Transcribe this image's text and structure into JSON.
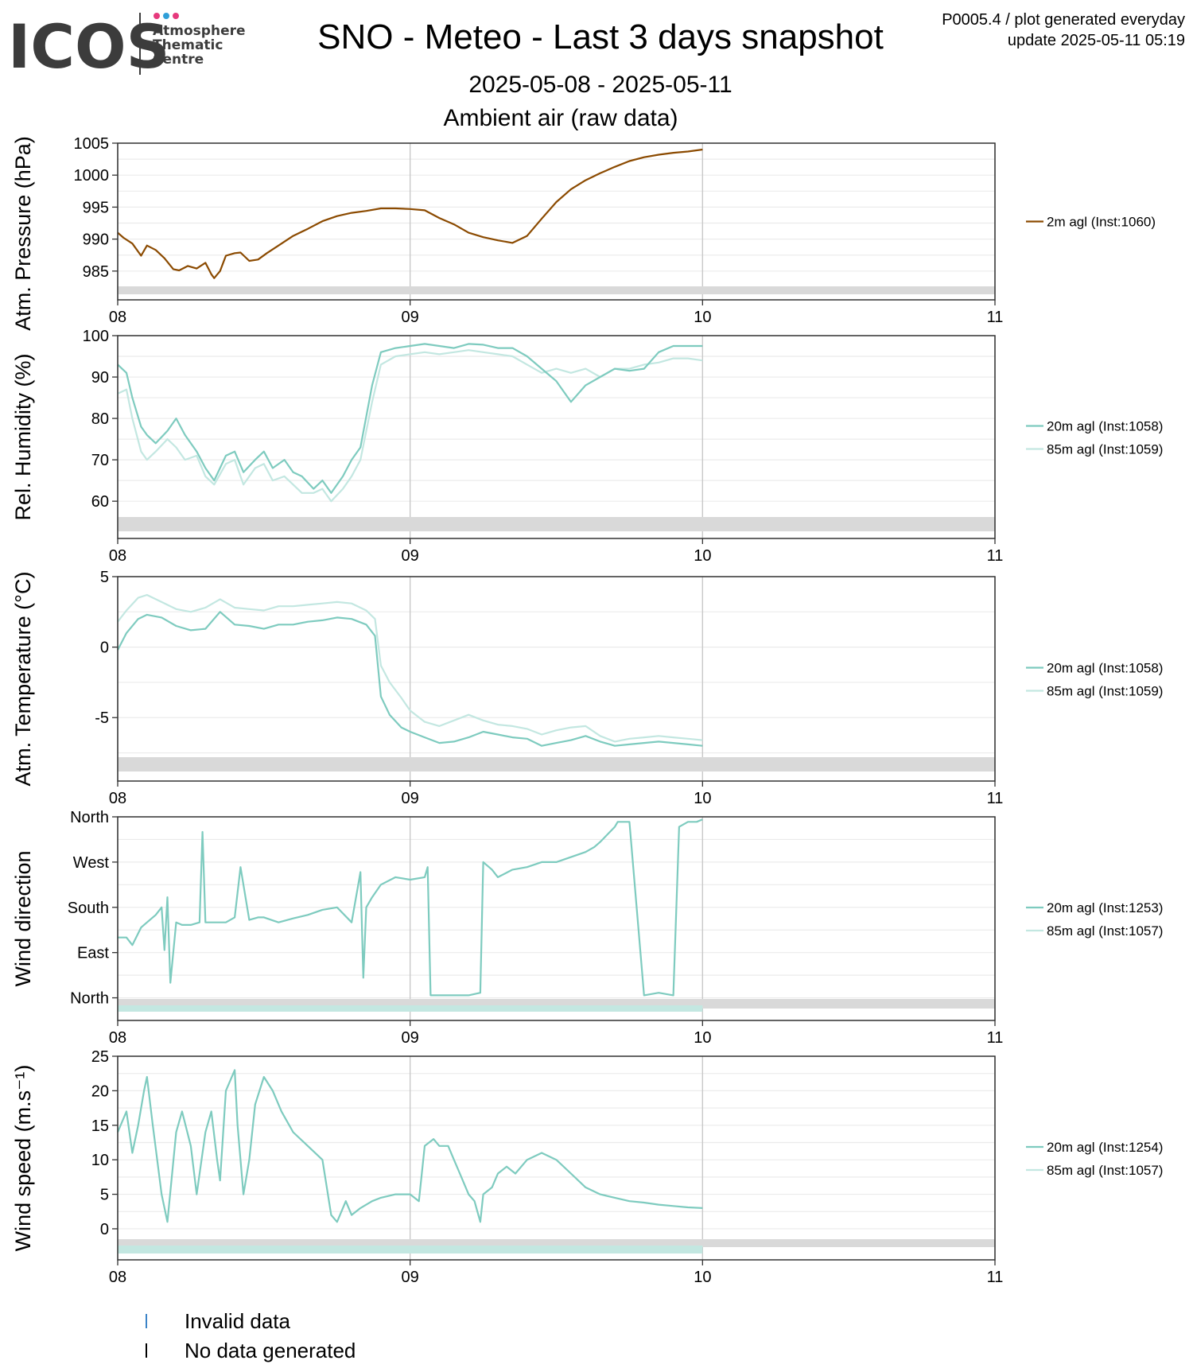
{
  "header": {
    "logo_text": "ICOS",
    "logo_sub": [
      "Atmosphere",
      "Thematic",
      "Centre"
    ],
    "title": "SNO - Meteo - Last 3 days snapshot",
    "date_range": "2025-05-08 - 2025-05-11",
    "panel_title": "Ambient air (raw data)",
    "meta_line1": "P0005.4 / plot generated everyday",
    "meta_line2": "update  2025-05-11 05:19"
  },
  "colors": {
    "logo_dots": [
      "#e6397c",
      "#2f9fd8",
      "#e6397c"
    ],
    "pressure": "#8b4a00",
    "series_20m": "#7ecbbf",
    "series_85m": "#c3e7e1",
    "no_data": "#d9d9d9",
    "invalid": "#3b83c7",
    "grid": "#ebebeb",
    "vline": "#c8c8c8"
  },
  "chart_data": [
    {
      "type": "line",
      "id": "pressure",
      "ylabel": "Atm. Pressure (hPa)",
      "x_ticks": [
        "08",
        "09",
        "10",
        "11"
      ],
      "y_ticks": [
        985,
        990,
        995,
        1000,
        1005
      ],
      "ylim": [
        980.5,
        1005
      ],
      "series": [
        {
          "name": "2m agl (Inst:1060)",
          "color_key": "pressure",
          "x": [
            0,
            0.02,
            0.05,
            0.08,
            0.1,
            0.13,
            0.16,
            0.19,
            0.21,
            0.24,
            0.27,
            0.3,
            0.32,
            0.33,
            0.35,
            0.37,
            0.4,
            0.42,
            0.45,
            0.48,
            0.51,
            0.55,
            0.6,
            0.65,
            0.7,
            0.75,
            0.8,
            0.85,
            0.9,
            0.95,
            1.0,
            1.05,
            1.1,
            1.15,
            1.2,
            1.25,
            1.3,
            1.35,
            1.4,
            1.45,
            1.5,
            1.55,
            1.6,
            1.65,
            1.7,
            1.75,
            1.8,
            1.85,
            1.9,
            1.95,
            2.0
          ],
          "y": [
            991,
            990.2,
            989.3,
            987.4,
            989,
            988.3,
            987,
            985.3,
            985.1,
            985.8,
            985.4,
            986.3,
            984.5,
            983.9,
            985,
            987.4,
            987.8,
            987.9,
            986.6,
            986.8,
            987.8,
            989,
            990.5,
            991.6,
            992.8,
            993.6,
            994.1,
            994.4,
            994.8,
            994.8,
            994.7,
            994.5,
            993.3,
            992.3,
            991,
            990.3,
            989.8,
            989.4,
            990.5,
            993.2,
            995.8,
            997.8,
            999.2,
            1000.3,
            1001.3,
            1002.2,
            1002.8,
            1003.2,
            1003.5,
            1003.7,
            1004
          ]
        }
      ]
    },
    {
      "type": "line",
      "id": "humidity",
      "ylabel": "Rel. Humidity (%)",
      "x_ticks": [
        "08",
        "09",
        "10",
        "11"
      ],
      "y_ticks": [
        60,
        70,
        80,
        90,
        100
      ],
      "ylim": [
        51,
        100
      ],
      "series": [
        {
          "name": "20m agl (Inst:1058)",
          "color_key": "series_20m",
          "x": [
            0,
            0.03,
            0.05,
            0.08,
            0.1,
            0.13,
            0.17,
            0.2,
            0.23,
            0.27,
            0.3,
            0.33,
            0.37,
            0.4,
            0.43,
            0.47,
            0.5,
            0.53,
            0.57,
            0.6,
            0.63,
            0.67,
            0.7,
            0.73,
            0.77,
            0.8,
            0.83,
            0.87,
            0.9,
            0.95,
            1.0,
            1.05,
            1.1,
            1.15,
            1.2,
            1.25,
            1.3,
            1.35,
            1.4,
            1.45,
            1.5,
            1.55,
            1.6,
            1.65,
            1.7,
            1.75,
            1.8,
            1.85,
            1.9,
            1.95,
            2.0
          ],
          "y": [
            93,
            91,
            85,
            78,
            76,
            74,
            77,
            80,
            76,
            72,
            68,
            65,
            71,
            72,
            67,
            70,
            72,
            68,
            70,
            67,
            66,
            63,
            65,
            62,
            66,
            70,
            73,
            88,
            96,
            97,
            97.5,
            98,
            97.5,
            97,
            98,
            97.8,
            97,
            97,
            95,
            92,
            89,
            84,
            88,
            90,
            92,
            91.5,
            92,
            96,
            97.5,
            97.5,
            97.5
          ]
        },
        {
          "name": "85m agl (Inst:1059)",
          "color_key": "series_85m",
          "x": [
            0,
            0.03,
            0.05,
            0.08,
            0.1,
            0.13,
            0.17,
            0.2,
            0.23,
            0.27,
            0.3,
            0.33,
            0.37,
            0.4,
            0.43,
            0.47,
            0.5,
            0.53,
            0.57,
            0.6,
            0.63,
            0.67,
            0.7,
            0.73,
            0.77,
            0.8,
            0.83,
            0.87,
            0.9,
            0.95,
            1.0,
            1.05,
            1.1,
            1.15,
            1.2,
            1.25,
            1.3,
            1.35,
            1.4,
            1.45,
            1.5,
            1.55,
            1.6,
            1.65,
            1.7,
            1.75,
            1.8,
            1.85,
            1.9,
            1.95,
            2.0
          ],
          "y": [
            86,
            87,
            80,
            72,
            70,
            72,
            75,
            73,
            70,
            71,
            66,
            64,
            69,
            70,
            64,
            68,
            69,
            65,
            66,
            64,
            62,
            62,
            63,
            60,
            63,
            66,
            70,
            84,
            93,
            95,
            95.5,
            96,
            95.5,
            96,
            96.5,
            96,
            95.5,
            95,
            93,
            91,
            92,
            91,
            92,
            90,
            92,
            92,
            93,
            93.5,
            94.5,
            94.5,
            94
          ]
        }
      ]
    },
    {
      "type": "line",
      "id": "temperature",
      "ylabel": "Atm. Temperature (°C)",
      "x_ticks": [
        "08",
        "09",
        "10",
        "11"
      ],
      "y_ticks": [
        -5,
        0,
        5
      ],
      "ylim": [
        -9.5,
        5
      ],
      "series": [
        {
          "name": "20m agl (Inst:1058)",
          "color_key": "series_20m",
          "x": [
            0,
            0.03,
            0.07,
            0.1,
            0.15,
            0.2,
            0.25,
            0.3,
            0.35,
            0.4,
            0.45,
            0.5,
            0.55,
            0.6,
            0.65,
            0.7,
            0.75,
            0.8,
            0.85,
            0.88,
            0.9,
            0.93,
            0.97,
            1.0,
            1.05,
            1.1,
            1.15,
            1.2,
            1.25,
            1.3,
            1.35,
            1.4,
            1.45,
            1.5,
            1.55,
            1.6,
            1.65,
            1.7,
            1.75,
            1.8,
            1.85,
            1.9,
            1.95,
            2.0
          ],
          "y": [
            -0.2,
            1,
            2,
            2.3,
            2.1,
            1.5,
            1.2,
            1.3,
            2.5,
            1.6,
            1.5,
            1.3,
            1.6,
            1.6,
            1.8,
            1.9,
            2.1,
            2,
            1.6,
            0.8,
            -3.5,
            -4.8,
            -5.7,
            -6,
            -6.4,
            -6.8,
            -6.7,
            -6.4,
            -6,
            -6.2,
            -6.4,
            -6.5,
            -7,
            -6.8,
            -6.6,
            -6.3,
            -6.7,
            -7,
            -6.9,
            -6.8,
            -6.7,
            -6.8,
            -6.9,
            -7
          ]
        },
        {
          "name": "85m agl (Inst:1059)",
          "color_key": "series_85m",
          "x": [
            0,
            0.03,
            0.07,
            0.1,
            0.15,
            0.2,
            0.25,
            0.3,
            0.35,
            0.4,
            0.45,
            0.5,
            0.55,
            0.6,
            0.65,
            0.7,
            0.75,
            0.8,
            0.85,
            0.88,
            0.9,
            0.93,
            0.97,
            1.0,
            1.05,
            1.1,
            1.15,
            1.2,
            1.25,
            1.3,
            1.35,
            1.4,
            1.45,
            1.5,
            1.55,
            1.6,
            1.65,
            1.7,
            1.75,
            1.8,
            1.85,
            1.9,
            1.95,
            2.0
          ],
          "y": [
            1.8,
            2.6,
            3.5,
            3.7,
            3.2,
            2.7,
            2.5,
            2.8,
            3.4,
            2.8,
            2.7,
            2.6,
            2.9,
            2.9,
            3,
            3.1,
            3.2,
            3.1,
            2.6,
            2,
            -1.3,
            -2.5,
            -3.6,
            -4.5,
            -5.3,
            -5.6,
            -5.2,
            -4.8,
            -5.2,
            -5.5,
            -5.6,
            -5.8,
            -6.2,
            -5.9,
            -5.7,
            -5.6,
            -6.3,
            -6.7,
            -6.5,
            -6.4,
            -6.3,
            -6.4,
            -6.5,
            -6.6
          ]
        }
      ]
    },
    {
      "type": "line",
      "id": "wind_direction",
      "ylabel": "Wind direction",
      "x_ticks": [
        "08",
        "09",
        "10",
        "11"
      ],
      "y_ticks": [
        0,
        90,
        180,
        270,
        360
      ],
      "y_tick_labels": [
        "North",
        "East",
        "South",
        "West",
        "North"
      ],
      "ylim": [
        -45,
        360
      ],
      "series": [
        {
          "name": "20m agl (Inst:1253)",
          "color_key": "series_20m",
          "x": [
            0,
            0.03,
            0.05,
            0.08,
            0.1,
            0.13,
            0.15,
            0.16,
            0.17,
            0.18,
            0.2,
            0.22,
            0.25,
            0.28,
            0.29,
            0.3,
            0.33,
            0.37,
            0.4,
            0.42,
            0.45,
            0.48,
            0.5,
            0.55,
            0.6,
            0.65,
            0.7,
            0.75,
            0.8,
            0.83,
            0.84,
            0.85,
            0.87,
            0.9,
            0.95,
            1.0,
            1.05,
            1.06,
            1.07,
            1.1,
            1.15,
            1.2,
            1.24,
            1.25,
            1.28,
            1.3,
            1.35,
            1.4,
            1.45,
            1.5,
            1.55,
            1.6,
            1.63,
            1.65,
            1.7,
            1.71,
            1.72,
            1.75,
            1.8,
            1.85,
            1.9,
            1.92,
            1.95,
            1.98,
            2.0
          ],
          "y": [
            120,
            120,
            105,
            140,
            150,
            165,
            180,
            95,
            200,
            30,
            150,
            145,
            145,
            150,
            330,
            150,
            150,
            150,
            160,
            260,
            155,
            160,
            160,
            150,
            158,
            165,
            175,
            180,
            150,
            250,
            40,
            180,
            200,
            225,
            240,
            235,
            240,
            260,
            5,
            5,
            5,
            5,
            10,
            270,
            255,
            240,
            255,
            260,
            270,
            270,
            280,
            290,
            300,
            310,
            340,
            350,
            350,
            350,
            5,
            10,
            5,
            340,
            350,
            350,
            355
          ]
        },
        {
          "name": "85m agl (Inst:1057)",
          "color_key": "series_85m",
          "x": [],
          "y": []
        }
      ]
    },
    {
      "type": "line",
      "id": "wind_speed",
      "ylabel": "Wind speed (m.s⁻¹)",
      "x_ticks": [
        "08",
        "09",
        "10",
        "11"
      ],
      "y_ticks": [
        0,
        5,
        10,
        15,
        20,
        25
      ],
      "ylim": [
        -4.5,
        25
      ],
      "series": [
        {
          "name": "20m agl (Inst:1254)",
          "color_key": "series_20m",
          "x": [
            0,
            0.03,
            0.05,
            0.07,
            0.09,
            0.1,
            0.12,
            0.15,
            0.17,
            0.2,
            0.22,
            0.25,
            0.27,
            0.3,
            0.32,
            0.34,
            0.35,
            0.37,
            0.4,
            0.41,
            0.43,
            0.45,
            0.47,
            0.5,
            0.53,
            0.56,
            0.6,
            0.65,
            0.7,
            0.73,
            0.75,
            0.78,
            0.8,
            0.83,
            0.87,
            0.9,
            0.95,
            1.0,
            1.03,
            1.05,
            1.08,
            1.1,
            1.13,
            1.15,
            1.17,
            1.2,
            1.22,
            1.24,
            1.25,
            1.28,
            1.3,
            1.33,
            1.36,
            1.4,
            1.45,
            1.5,
            1.55,
            1.6,
            1.65,
            1.7,
            1.75,
            1.8,
            1.85,
            1.9,
            1.95,
            2.0
          ],
          "y": [
            14,
            17,
            11,
            15,
            20,
            22,
            15,
            5,
            1,
            14,
            17,
            12,
            5,
            14,
            17,
            10,
            7,
            20,
            23,
            15,
            5,
            10,
            18,
            22,
            20,
            17,
            14,
            12,
            10,
            2,
            1,
            4,
            2,
            3,
            4,
            4.5,
            5,
            5,
            4,
            12,
            13,
            12,
            12,
            10,
            8,
            5,
            4,
            1,
            5,
            6,
            8,
            9,
            8,
            10,
            11,
            10,
            8,
            6,
            5,
            4.5,
            4,
            3.8,
            3.5,
            3.3,
            3.1,
            3
          ]
        },
        {
          "name": "85m agl (Inst:1057)",
          "color_key": "series_85m",
          "x": [],
          "y": []
        }
      ]
    }
  ],
  "bottom_legend": {
    "invalid": "Invalid data",
    "no_data": "No data generated"
  }
}
